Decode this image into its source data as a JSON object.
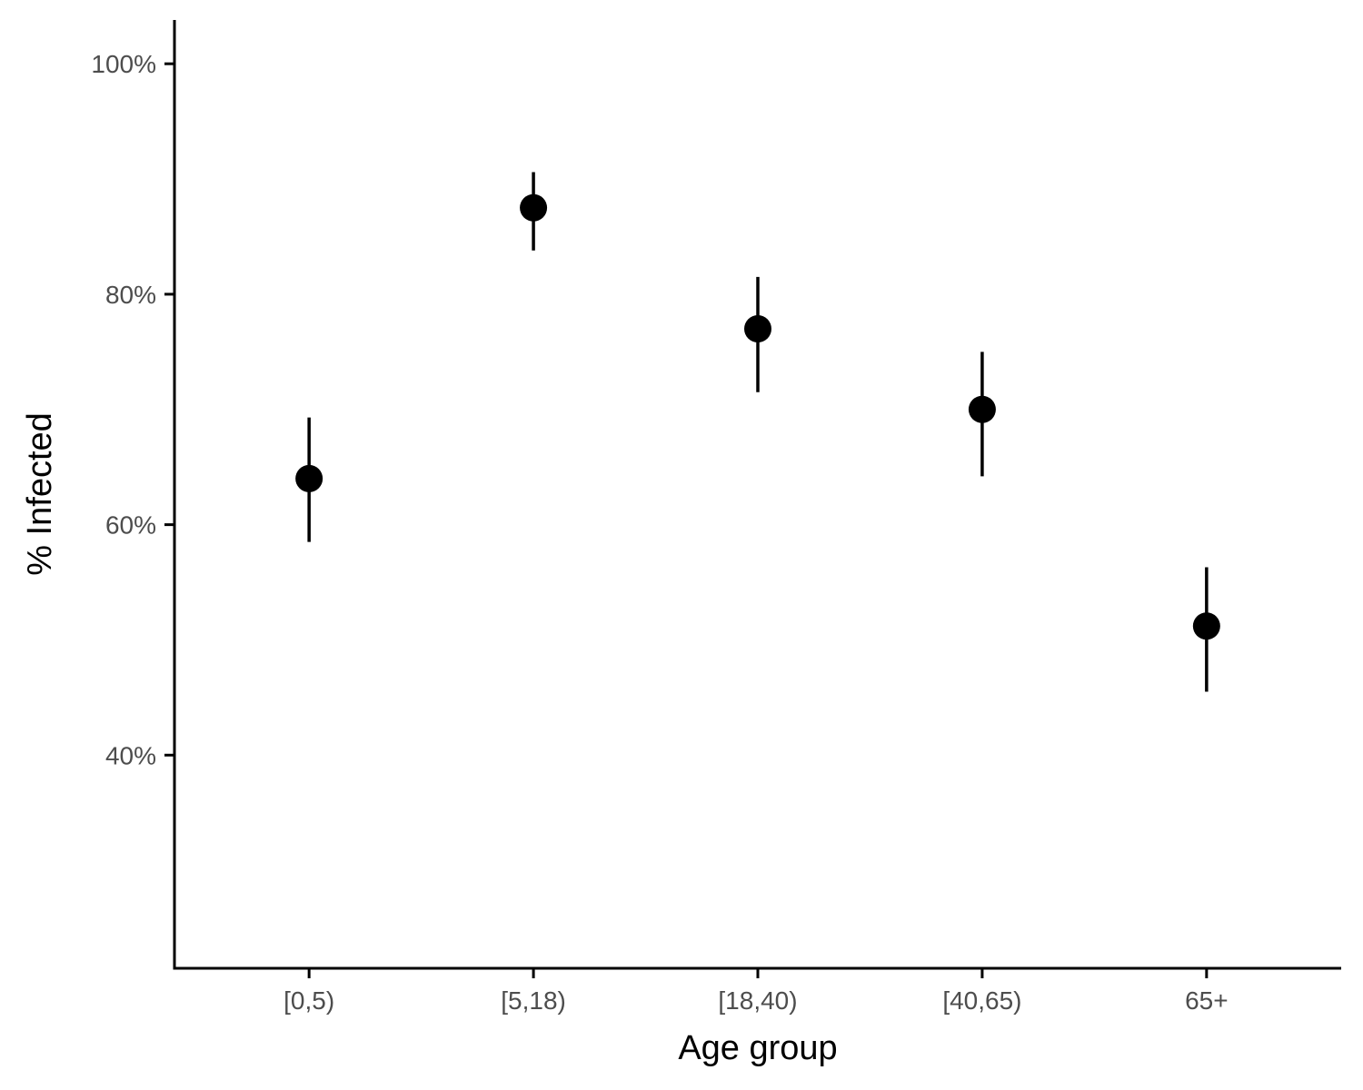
{
  "chart_data": {
    "type": "scatter",
    "title": "",
    "xlabel": "Age group",
    "ylabel": "% Infected",
    "categories": [
      "[0,5)",
      "[5,18)",
      "[18,40)",
      "[40,65)",
      "65+"
    ],
    "values": [
      64.0,
      87.5,
      77.0,
      70.0,
      51.2
    ],
    "ci_lower": [
      58.5,
      83.8,
      71.5,
      64.2,
      45.5
    ],
    "ci_upper": [
      69.3,
      90.6,
      81.5,
      75.0,
      56.3
    ],
    "ylim": [
      21.5,
      103.8
    ],
    "yticks": [
      40,
      60,
      80,
      100
    ],
    "ytick_labels": [
      "40%",
      "60%",
      "80%",
      "100%"
    ],
    "grid": false,
    "legend": "none",
    "colors": {
      "points": "#000000",
      "axes": "#000000",
      "tick_text": "#4d4d4d"
    }
  }
}
